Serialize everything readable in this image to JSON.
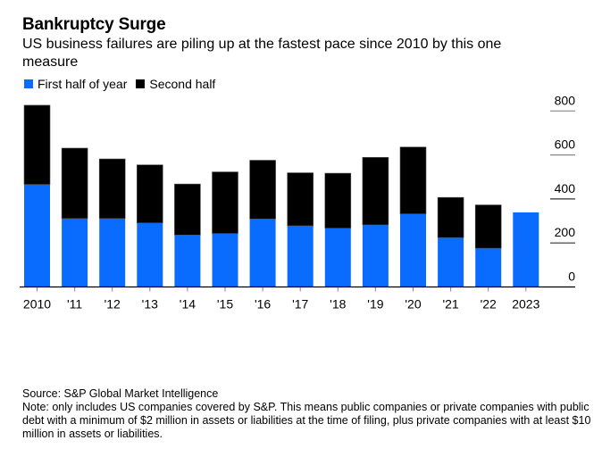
{
  "header": {
    "title": "Bankruptcy Surge",
    "subtitle": "US business failures are piling up at the fastest pace since 2010 by this one measure"
  },
  "legend": [
    {
      "label": "First half of year",
      "color": "#0a6cff"
    },
    {
      "label": "Second half",
      "color": "#000000"
    }
  ],
  "footer": {
    "source": "Source: S&P Global Market Intelligence",
    "note": "Note: only includes US companies covered by S&P. This means public companies or private companies with public debt with a minimum of $2 million in assets or liabilities at the time of filing, plus private companies with at least $10 million in assets or liabilities."
  },
  "chart_data": {
    "type": "bar",
    "stacked": true,
    "title": "Bankruptcy Surge",
    "subtitle": "US business failures are piling up at the fastest pace since 2010 by this one measure",
    "xlabel": "",
    "ylabel": "",
    "categories": [
      "2010",
      "'11",
      "'12",
      "'13",
      "'14",
      "'15",
      "'16",
      "'17",
      "'18",
      "'19",
      "'20",
      "'21",
      "'22",
      "2023"
    ],
    "series": [
      {
        "name": "First half of year",
        "color": "#0a6cff",
        "values": [
          466,
          311,
          311,
          291,
          236,
          243,
          309,
          278,
          267,
          282,
          332,
          224,
          176,
          339
        ]
      },
      {
        "name": "Second half",
        "color": "#000000",
        "values": [
          360,
          320,
          271,
          264,
          232,
          280,
          267,
          241,
          250,
          307,
          304,
          183,
          197,
          null
        ]
      }
    ],
    "totals": [
      826,
      631,
      582,
      555,
      468,
      523,
      576,
      519,
      517,
      589,
      636,
      407,
      373,
      339
    ],
    "ylim": [
      0,
      800
    ],
    "yticks": [
      0,
      200,
      400,
      600,
      800
    ],
    "y_axis_side": "right",
    "grid": false,
    "legend_position": "top-left"
  }
}
